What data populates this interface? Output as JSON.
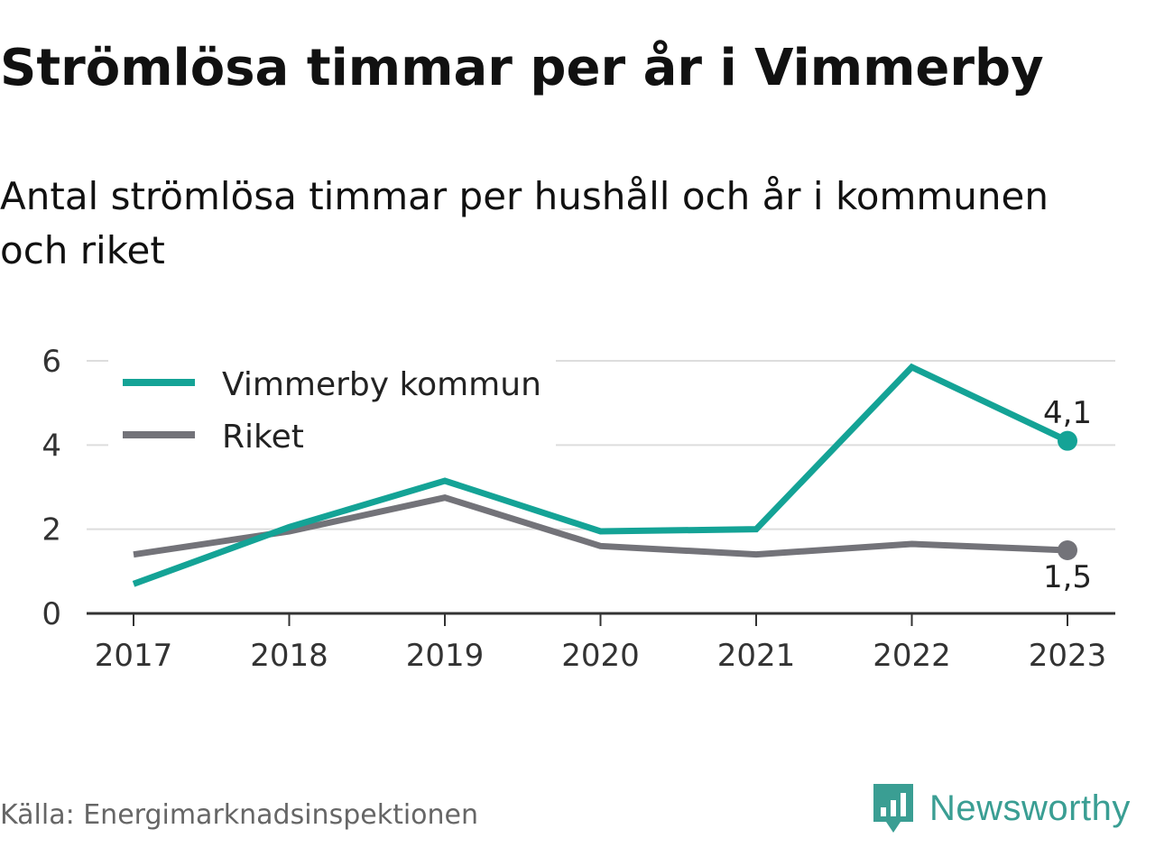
{
  "title": "Strömlösa timmar per år i Vimmerby",
  "subtitle": "Antal strömlösa timmar per hushåll och år i kommunen och riket",
  "source": "Källa: Energimarknadsinspektionen",
  "brand": {
    "name": "Newsworthy",
    "icon": "newsworthy-logo-icon",
    "color": "#3a9e93"
  },
  "colors": {
    "vimmerby": "#14a396",
    "riket": "#737379",
    "grid": "#dddddd",
    "axis": "#333333"
  },
  "chart_data": {
    "type": "line",
    "x": [
      2017,
      2018,
      2019,
      2020,
      2021,
      2022,
      2023
    ],
    "ylim": [
      0,
      6
    ],
    "yticks": [
      0,
      2,
      4,
      6
    ],
    "grid": true,
    "legend_position": "top-left",
    "series": [
      {
        "name": "Vimmerby kommun",
        "values": [
          0.7,
          2.05,
          3.15,
          1.95,
          2.0,
          5.85,
          4.1
        ],
        "end_label": "4,1"
      },
      {
        "name": "Riket",
        "values": [
          1.4,
          1.95,
          2.75,
          1.6,
          1.4,
          1.65,
          1.5
        ],
        "end_label": "1,5"
      }
    ]
  }
}
